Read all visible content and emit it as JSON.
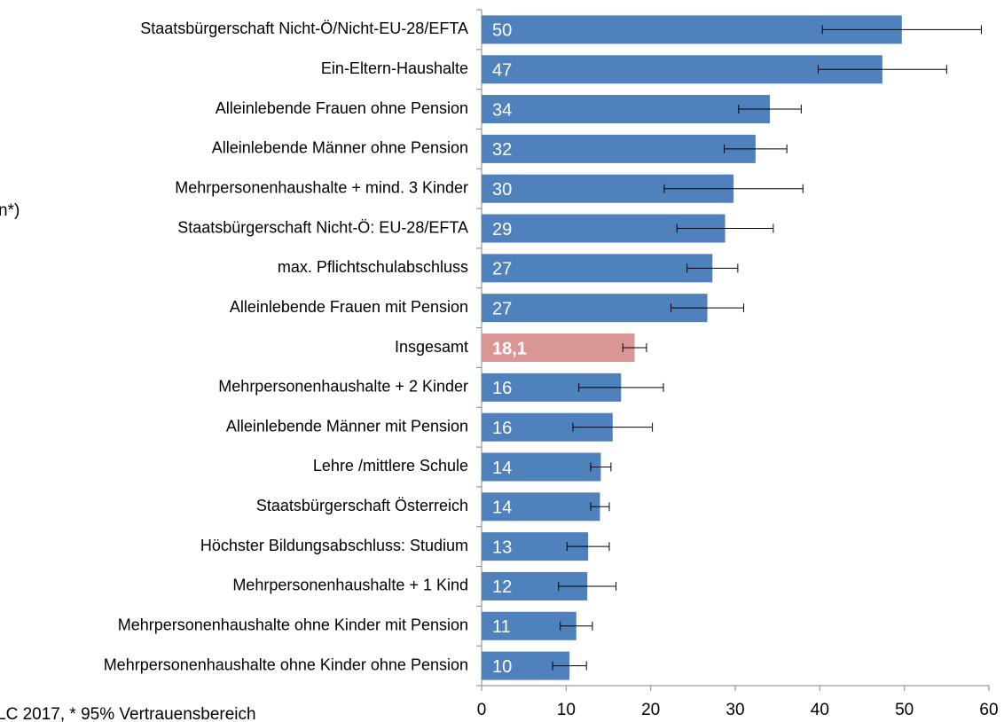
{
  "chart_data": {
    "type": "hbar",
    "annotations": [
      "n*)",
      "LC 2017, * 95% Vertrauensbereich"
    ],
    "categories": [
      "Staatsbürgerschaft Nicht-Ö/Nicht-EU-28/EFTA",
      "Ein-Eltern-Haushalte",
      "Alleinlebende Frauen ohne Pension",
      "Alleinlebende Männer ohne Pension",
      "Mehrpersonenhaushalte + mind. 3 Kinder",
      "Staatsbürgerschaft Nicht-Ö: EU-28/EFTA",
      "max. Pflichtschulabschluss",
      "Alleinlebende Frauen mit Pension",
      "Insgesamt",
      "Mehrpersonenhaushalte + 2 Kinder",
      "Alleinlebende Männer mit Pension",
      "Lehre /mittlere Schule",
      "Staatsbürgerschaft Österreich",
      "Höchster Bildungsabschluss: Studium",
      "Mehrpersonenhaushalte + 1 Kind",
      "Mehrpersonenhaushalte ohne Kinder mit Pension",
      "Mehrpersonenhaushalte ohne Kinder ohne Pension"
    ],
    "values": [
      49.7,
      47.4,
      34.1,
      32.4,
      29.8,
      28.8,
      27.3,
      26.7,
      18.1,
      16.5,
      15.5,
      14.1,
      14.0,
      12.6,
      12.5,
      11.2,
      10.4
    ],
    "value_labels": [
      "50",
      "47",
      "34",
      "32",
      "30",
      "29",
      "27",
      "27",
      "18,1",
      "16",
      "16",
      "14",
      "14",
      "13",
      "12",
      "11",
      "10"
    ],
    "errors": [
      9.4,
      7.6,
      3.7,
      3.7,
      8.2,
      5.7,
      3.0,
      4.3,
      1.4,
      5.0,
      4.7,
      1.2,
      1.1,
      2.5,
      3.4,
      1.9,
      2.0
    ],
    "colors": [
      "#4f81bd",
      "#4f81bd",
      "#4f81bd",
      "#4f81bd",
      "#4f81bd",
      "#4f81bd",
      "#4f81bd",
      "#4f81bd",
      "#d99694",
      "#4f81bd",
      "#4f81bd",
      "#4f81bd",
      "#4f81bd",
      "#4f81bd",
      "#4f81bd",
      "#4f81bd",
      "#4f81bd"
    ],
    "xlim": [
      0,
      60
    ],
    "xticks": [
      0,
      10,
      20,
      30,
      40,
      50,
      60
    ],
    "grid": false
  }
}
